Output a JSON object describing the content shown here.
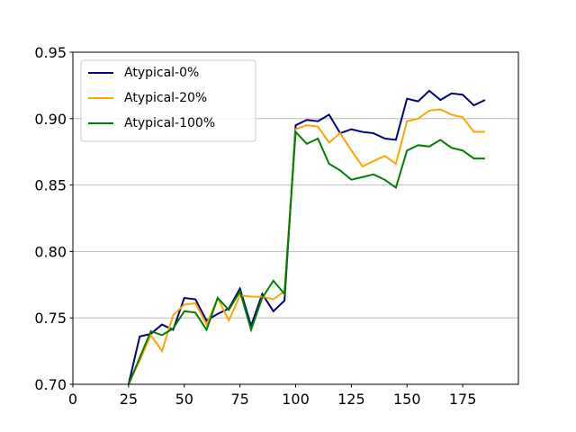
{
  "chart_data": {
    "type": "line",
    "x": [
      25,
      30,
      35,
      40,
      45,
      50,
      55,
      60,
      65,
      70,
      75,
      80,
      85,
      90,
      95,
      100,
      105,
      110,
      115,
      120,
      125,
      130,
      135,
      140,
      145,
      150,
      155,
      160,
      165,
      170,
      175,
      180,
      185
    ],
    "series": [
      {
        "name": "Atypical-0%",
        "color": "#000080",
        "values": [
          0.7,
          0.736,
          0.738,
          0.745,
          0.741,
          0.765,
          0.764,
          0.748,
          0.753,
          0.757,
          0.772,
          0.744,
          0.768,
          0.755,
          0.763,
          0.895,
          0.899,
          0.898,
          0.903,
          0.889,
          0.892,
          0.89,
          0.889,
          0.885,
          0.884,
          0.915,
          0.913,
          0.921,
          0.914,
          0.919,
          0.918,
          0.91,
          0.914
        ]
      },
      {
        "name": "Atypical-20%",
        "color": "#ffa500",
        "values": [
          0.7,
          0.718,
          0.737,
          0.725,
          0.752,
          0.76,
          0.761,
          0.745,
          0.765,
          0.748,
          0.767,
          0.766,
          0.766,
          0.764,
          0.77,
          0.892,
          0.895,
          0.894,
          0.882,
          0.889,
          0.876,
          0.864,
          0.868,
          0.872,
          0.866,
          0.898,
          0.9,
          0.906,
          0.907,
          0.903,
          0.901,
          0.89,
          0.89
        ]
      },
      {
        "name": "Atypical-100%",
        "color": "#008000",
        "values": [
          0.7,
          0.72,
          0.74,
          0.737,
          0.742,
          0.755,
          0.754,
          0.741,
          0.765,
          0.756,
          0.77,
          0.741,
          0.765,
          0.778,
          0.768,
          0.89,
          0.881,
          0.885,
          0.866,
          0.861,
          0.854,
          0.856,
          0.858,
          0.854,
          0.848,
          0.876,
          0.88,
          0.879,
          0.884,
          0.878,
          0.876,
          0.87,
          0.87
        ]
      }
    ],
    "xlim": [
      0,
      200
    ],
    "ylim": [
      0.7,
      0.95
    ],
    "xticks": [
      0,
      25,
      50,
      75,
      100,
      125,
      150,
      175
    ],
    "yticks": [
      {
        "value": 0.7,
        "label": "0.70"
      },
      {
        "value": 0.75,
        "label": "0.75"
      },
      {
        "value": 0.8,
        "label": "0.80"
      },
      {
        "value": 0.85,
        "label": "0.85"
      },
      {
        "value": 0.9,
        "label": "0.90"
      },
      {
        "value": 0.95,
        "label": "0.95"
      }
    ],
    "grid": "y",
    "legend": "upper left"
  }
}
